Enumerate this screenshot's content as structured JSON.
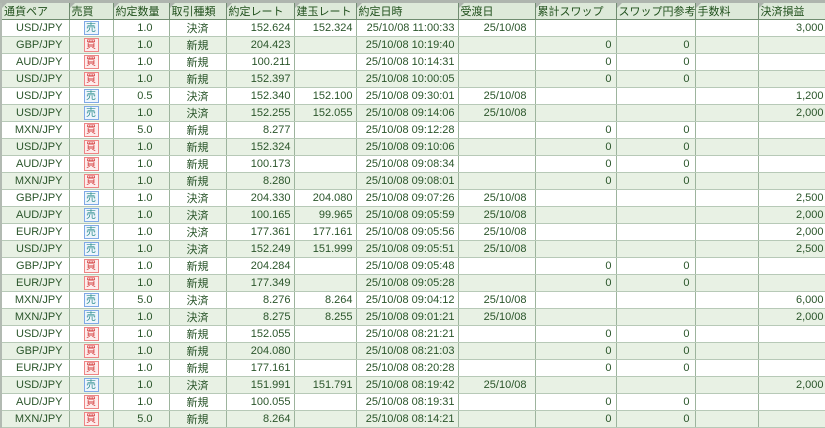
{
  "table": {
    "columns": [
      "通貨ペア",
      "売買",
      "約定数量",
      "取引種類",
      "約定レート",
      "建玉レート",
      "約定日時",
      "受渡日",
      "累計スワップ",
      "スワップ円参考",
      "手数料",
      "決済損益"
    ],
    "rows": [
      {
        "pair": "USD/JPY",
        "side": "売",
        "side_kind": "sell",
        "qty": "1.0",
        "type": "決済",
        "rate": "152.624",
        "open_rate": "152.324",
        "datetime": "25/10/08 11:00:33",
        "delivery": "25/10/08",
        "swap": "",
        "swap_ref": "",
        "fee": "",
        "pl": "3,000"
      },
      {
        "pair": "GBP/JPY",
        "side": "買",
        "side_kind": "buy",
        "qty": "1.0",
        "type": "新規",
        "rate": "204.423",
        "open_rate": "",
        "datetime": "25/10/08 10:19:40",
        "delivery": "",
        "swap": "0",
        "swap_ref": "0",
        "fee": "",
        "pl": ""
      },
      {
        "pair": "AUD/JPY",
        "side": "買",
        "side_kind": "buy",
        "qty": "1.0",
        "type": "新規",
        "rate": "100.211",
        "open_rate": "",
        "datetime": "25/10/08 10:14:31",
        "delivery": "",
        "swap": "0",
        "swap_ref": "0",
        "fee": "",
        "pl": ""
      },
      {
        "pair": "USD/JPY",
        "side": "買",
        "side_kind": "buy",
        "qty": "1.0",
        "type": "新規",
        "rate": "152.397",
        "open_rate": "",
        "datetime": "25/10/08 10:00:05",
        "delivery": "",
        "swap": "0",
        "swap_ref": "0",
        "fee": "",
        "pl": ""
      },
      {
        "pair": "USD/JPY",
        "side": "売",
        "side_kind": "sell",
        "qty": "0.5",
        "type": "決済",
        "rate": "152.340",
        "open_rate": "152.100",
        "datetime": "25/10/08 09:30:01",
        "delivery": "25/10/08",
        "swap": "",
        "swap_ref": "",
        "fee": "",
        "pl": "1,200"
      },
      {
        "pair": "USD/JPY",
        "side": "売",
        "side_kind": "sell",
        "qty": "1.0",
        "type": "決済",
        "rate": "152.255",
        "open_rate": "152.055",
        "datetime": "25/10/08 09:14:06",
        "delivery": "25/10/08",
        "swap": "",
        "swap_ref": "",
        "fee": "",
        "pl": "2,000"
      },
      {
        "pair": "MXN/JPY",
        "side": "買",
        "side_kind": "buy",
        "qty": "5.0",
        "type": "新規",
        "rate": "8.277",
        "open_rate": "",
        "datetime": "25/10/08 09:12:28",
        "delivery": "",
        "swap": "0",
        "swap_ref": "0",
        "fee": "",
        "pl": ""
      },
      {
        "pair": "USD/JPY",
        "side": "買",
        "side_kind": "buy",
        "qty": "1.0",
        "type": "新規",
        "rate": "152.324",
        "open_rate": "",
        "datetime": "25/10/08 09:10:06",
        "delivery": "",
        "swap": "0",
        "swap_ref": "0",
        "fee": "",
        "pl": ""
      },
      {
        "pair": "AUD/JPY",
        "side": "買",
        "side_kind": "buy",
        "qty": "1.0",
        "type": "新規",
        "rate": "100.173",
        "open_rate": "",
        "datetime": "25/10/08 09:08:34",
        "delivery": "",
        "swap": "0",
        "swap_ref": "0",
        "fee": "",
        "pl": ""
      },
      {
        "pair": "MXN/JPY",
        "side": "買",
        "side_kind": "buy",
        "qty": "1.0",
        "type": "新規",
        "rate": "8.280",
        "open_rate": "",
        "datetime": "25/10/08 09:08:01",
        "delivery": "",
        "swap": "0",
        "swap_ref": "0",
        "fee": "",
        "pl": ""
      },
      {
        "pair": "GBP/JPY",
        "side": "売",
        "side_kind": "sell",
        "qty": "1.0",
        "type": "決済",
        "rate": "204.330",
        "open_rate": "204.080",
        "datetime": "25/10/08 09:07:26",
        "delivery": "25/10/08",
        "swap": "",
        "swap_ref": "",
        "fee": "",
        "pl": "2,500"
      },
      {
        "pair": "AUD/JPY",
        "side": "売",
        "side_kind": "sell",
        "qty": "1.0",
        "type": "決済",
        "rate": "100.165",
        "open_rate": "99.965",
        "datetime": "25/10/08 09:05:59",
        "delivery": "25/10/08",
        "swap": "",
        "swap_ref": "",
        "fee": "",
        "pl": "2,000"
      },
      {
        "pair": "EUR/JPY",
        "side": "売",
        "side_kind": "sell",
        "qty": "1.0",
        "type": "決済",
        "rate": "177.361",
        "open_rate": "177.161",
        "datetime": "25/10/08 09:05:56",
        "delivery": "25/10/08",
        "swap": "",
        "swap_ref": "",
        "fee": "",
        "pl": "2,000"
      },
      {
        "pair": "USD/JPY",
        "side": "売",
        "side_kind": "sell",
        "qty": "1.0",
        "type": "決済",
        "rate": "152.249",
        "open_rate": "151.999",
        "datetime": "25/10/08 09:05:51",
        "delivery": "25/10/08",
        "swap": "",
        "swap_ref": "",
        "fee": "",
        "pl": "2,500"
      },
      {
        "pair": "GBP/JPY",
        "side": "買",
        "side_kind": "buy",
        "qty": "1.0",
        "type": "新規",
        "rate": "204.284",
        "open_rate": "",
        "datetime": "25/10/08 09:05:48",
        "delivery": "",
        "swap": "0",
        "swap_ref": "0",
        "fee": "",
        "pl": ""
      },
      {
        "pair": "EUR/JPY",
        "side": "買",
        "side_kind": "buy",
        "qty": "1.0",
        "type": "新規",
        "rate": "177.349",
        "open_rate": "",
        "datetime": "25/10/08 09:05:28",
        "delivery": "",
        "swap": "0",
        "swap_ref": "0",
        "fee": "",
        "pl": ""
      },
      {
        "pair": "MXN/JPY",
        "side": "売",
        "side_kind": "sell",
        "qty": "5.0",
        "type": "決済",
        "rate": "8.276",
        "open_rate": "8.264",
        "datetime": "25/10/08 09:04:12",
        "delivery": "25/10/08",
        "swap": "",
        "swap_ref": "",
        "fee": "",
        "pl": "6,000"
      },
      {
        "pair": "MXN/JPY",
        "side": "売",
        "side_kind": "sell",
        "qty": "1.0",
        "type": "決済",
        "rate": "8.275",
        "open_rate": "8.255",
        "datetime": "25/10/08 09:01:21",
        "delivery": "25/10/08",
        "swap": "",
        "swap_ref": "",
        "fee": "",
        "pl": "2,000"
      },
      {
        "pair": "USD/JPY",
        "side": "買",
        "side_kind": "buy",
        "qty": "1.0",
        "type": "新規",
        "rate": "152.055",
        "open_rate": "",
        "datetime": "25/10/08 08:21:21",
        "delivery": "",
        "swap": "0",
        "swap_ref": "0",
        "fee": "",
        "pl": ""
      },
      {
        "pair": "GBP/JPY",
        "side": "買",
        "side_kind": "buy",
        "qty": "1.0",
        "type": "新規",
        "rate": "204.080",
        "open_rate": "",
        "datetime": "25/10/08 08:21:03",
        "delivery": "",
        "swap": "0",
        "swap_ref": "0",
        "fee": "",
        "pl": ""
      },
      {
        "pair": "EUR/JPY",
        "side": "買",
        "side_kind": "buy",
        "qty": "1.0",
        "type": "新規",
        "rate": "177.161",
        "open_rate": "",
        "datetime": "25/10/08 08:20:28",
        "delivery": "",
        "swap": "0",
        "swap_ref": "0",
        "fee": "",
        "pl": ""
      },
      {
        "pair": "USD/JPY",
        "side": "売",
        "side_kind": "sell",
        "qty": "1.0",
        "type": "決済",
        "rate": "151.991",
        "open_rate": "151.791",
        "datetime": "25/10/08 08:19:42",
        "delivery": "25/10/08",
        "swap": "",
        "swap_ref": "",
        "fee": "",
        "pl": "2,000"
      },
      {
        "pair": "AUD/JPY",
        "side": "買",
        "side_kind": "buy",
        "qty": "1.0",
        "type": "新規",
        "rate": "100.055",
        "open_rate": "",
        "datetime": "25/10/08 08:19:31",
        "delivery": "",
        "swap": "0",
        "swap_ref": "0",
        "fee": "",
        "pl": ""
      },
      {
        "pair": "MXN/JPY",
        "side": "買",
        "side_kind": "buy",
        "qty": "5.0",
        "type": "新規",
        "rate": "8.264",
        "open_rate": "",
        "datetime": "25/10/08 08:14:21",
        "delivery": "",
        "swap": "0",
        "swap_ref": "0",
        "fee": "",
        "pl": ""
      }
    ]
  },
  "colors": {
    "sell_badge_text": "#2e8f8f",
    "sell_badge_border": "#7fa9e6",
    "buy_badge_text": "#d43b3b",
    "buy_badge_border": "#ee8585",
    "header_bg": "#dde9d9",
    "row_alt_bg": "#e8f1e4",
    "text": "#2a552a"
  }
}
